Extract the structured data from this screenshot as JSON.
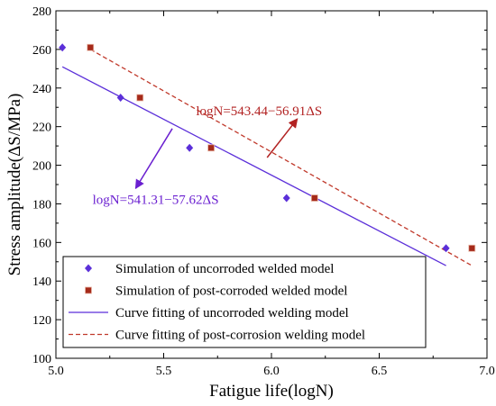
{
  "chart_data": {
    "type": "scatter",
    "xlabel": "Fatigue life(logN)",
    "ylabel": "Stress amplitude(ΔS/MPa)",
    "xlim": [
      5.0,
      7.0
    ],
    "ylim": [
      100,
      280
    ],
    "x_ticks": [
      "5.0",
      "5.5",
      "6.0",
      "6.5",
      "7.0"
    ],
    "y_ticks": [
      "100",
      "120",
      "140",
      "160",
      "180",
      "200",
      "220",
      "240",
      "260",
      "280"
    ],
    "grid": false,
    "legend_position": "bottom-left",
    "series": [
      {
        "name": "Simulation of uncorroded welded model",
        "kind": "scatter",
        "marker": "diamond",
        "color": "#5b2fd9",
        "x": [
          5.03,
          5.3,
          5.62,
          6.07,
          6.81
        ],
        "y": [
          261,
          235,
          209,
          183,
          157
        ]
      },
      {
        "name": "Simulation of post-corroded welded model",
        "kind": "scatter",
        "marker": "square",
        "color": "#a52a1a",
        "x": [
          5.16,
          5.39,
          5.72,
          6.2,
          6.93
        ],
        "y": [
          261,
          235,
          209,
          183,
          157
        ]
      },
      {
        "name": "Curve fitting of uncorroded welding model",
        "kind": "line",
        "style": "solid",
        "color": "#5b2fd9",
        "x": [
          5.03,
          6.81
        ],
        "y": [
          251,
          148
        ]
      },
      {
        "name": "Curve fitting of post-corrosion welding model",
        "kind": "line",
        "style": "dashed",
        "color": "#c0392b",
        "x": [
          5.16,
          6.93
        ],
        "y": [
          260,
          148
        ]
      }
    ],
    "annotations": [
      {
        "text": "logN=543.44−56.91ΔS",
        "color": "#b22222",
        "text_x": 5.65,
        "text_y": 226,
        "arrow_from": [
          5.98,
          204
        ],
        "arrow_to": [
          6.12,
          224
        ]
      },
      {
        "text": "logN=541.31−57.62ΔS",
        "color": "#6a1fd0",
        "text_x": 5.17,
        "text_y": 180,
        "arrow_from": [
          5.54,
          219
        ],
        "arrow_to": [
          5.37,
          188
        ]
      }
    ]
  }
}
